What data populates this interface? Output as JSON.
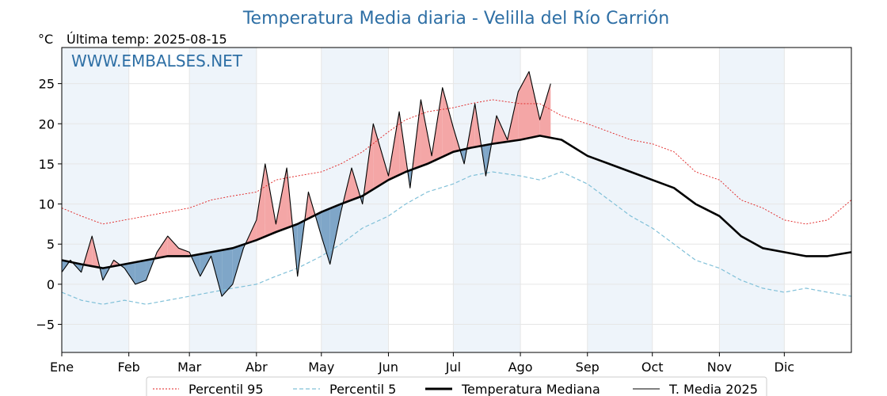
{
  "chart_data": {
    "type": "line",
    "title": "Temperatura Media diaria - Velilla del Río Carrión",
    "subtitle": "Última temp: 2025-08-15",
    "ylabel": "°C",
    "watermark": "WWW.EMBALSES.NET",
    "ylim": [
      -8.5,
      29.5
    ],
    "xlim": [
      1,
      366
    ],
    "yticks": [
      -5,
      0,
      5,
      10,
      15,
      20,
      25
    ],
    "ytick_labels": [
      "−5",
      "0",
      "5",
      "10",
      "15",
      "20",
      "25"
    ],
    "xticks": [
      {
        "label": "Ene",
        "day": 1
      },
      {
        "label": "Feb",
        "day": 32
      },
      {
        "label": "Mar",
        "day": 60
      },
      {
        "label": "Abr",
        "day": 91
      },
      {
        "label": "May",
        "day": 121
      },
      {
        "label": "Jun",
        "day": 152
      },
      {
        "label": "Jul",
        "day": 182
      },
      {
        "label": "Ago",
        "day": 213
      },
      {
        "label": "Sep",
        "day": 244
      },
      {
        "label": "Oct",
        "day": 274
      },
      {
        "label": "Nov",
        "day": 305
      },
      {
        "label": "Dic",
        "day": 335
      }
    ],
    "grid": true,
    "shaded_months": [
      "Ene",
      "Mar",
      "May",
      "Jul",
      "Sep",
      "Nov"
    ],
    "colors": {
      "p95": "#e02020",
      "p5": "#80c0d8",
      "median": "#000000",
      "current": "#000000",
      "above_fill": "#f4a6a6",
      "below_fill": "#7fa6c8",
      "title": "#2e6fa5",
      "band": "#eef4fa"
    },
    "legend_position": "bottom",
    "series": [
      {
        "name": "Percentil 95",
        "key": "p95",
        "x": [
          1,
          10,
          20,
          30,
          40,
          50,
          60,
          70,
          80,
          91,
          100,
          110,
          121,
          130,
          140,
          152,
          160,
          170,
          182,
          190,
          200,
          213,
          222,
          232,
          244,
          254,
          264,
          274,
          284,
          294,
          305,
          315,
          325,
          335,
          345,
          355,
          366
        ],
        "y": [
          9.5,
          8.5,
          7.5,
          8.0,
          8.5,
          9.0,
          9.5,
          10.5,
          11.0,
          11.5,
          13.0,
          13.5,
          14.0,
          15.0,
          16.5,
          19.0,
          20.5,
          21.5,
          22.0,
          22.5,
          23.0,
          22.5,
          22.5,
          21.0,
          20.0,
          19.0,
          18.0,
          17.5,
          16.5,
          14.0,
          13.0,
          10.5,
          9.5,
          8.0,
          7.5,
          8.0,
          10.5
        ]
      },
      {
        "name": "Percentil 5",
        "key": "p5",
        "x": [
          1,
          10,
          20,
          30,
          40,
          50,
          60,
          70,
          80,
          91,
          100,
          110,
          121,
          130,
          140,
          152,
          160,
          170,
          182,
          190,
          200,
          213,
          222,
          232,
          244,
          254,
          264,
          274,
          284,
          294,
          305,
          315,
          325,
          335,
          345,
          355,
          366
        ],
        "y": [
          -1.0,
          -2.0,
          -2.5,
          -2.0,
          -2.5,
          -2.0,
          -1.5,
          -1.0,
          -0.5,
          0.0,
          1.0,
          2.0,
          3.5,
          5.0,
          7.0,
          8.5,
          10.0,
          11.5,
          12.5,
          13.5,
          14.0,
          13.5,
          13.0,
          14.0,
          12.5,
          10.5,
          8.5,
          7.0,
          5.0,
          3.0,
          2.0,
          0.5,
          -0.5,
          -1.0,
          -0.5,
          -1.0,
          -1.5
        ]
      },
      {
        "name": "Temperatura Mediana",
        "key": "median",
        "x": [
          1,
          10,
          20,
          30,
          40,
          50,
          60,
          70,
          80,
          91,
          100,
          110,
          121,
          130,
          140,
          152,
          160,
          170,
          182,
          190,
          200,
          213,
          222,
          232,
          244,
          254,
          264,
          274,
          284,
          294,
          305,
          315,
          325,
          335,
          345,
          355,
          366
        ],
        "y": [
          3.0,
          2.5,
          2.0,
          2.5,
          3.0,
          3.5,
          3.5,
          4.0,
          4.5,
          5.5,
          6.5,
          7.5,
          9.0,
          10.0,
          11.0,
          13.0,
          14.0,
          15.0,
          16.5,
          17.0,
          17.5,
          18.0,
          18.5,
          18.0,
          16.0,
          15.0,
          14.0,
          13.0,
          12.0,
          10.0,
          8.5,
          6.0,
          4.5,
          4.0,
          3.5,
          3.5,
          4.0
        ]
      },
      {
        "name": "T. Media 2025",
        "key": "current",
        "x": [
          1,
          5,
          10,
          15,
          20,
          25,
          30,
          35,
          40,
          45,
          50,
          55,
          60,
          65,
          70,
          75,
          80,
          85,
          91,
          95,
          100,
          105,
          110,
          115,
          121,
          125,
          130,
          135,
          140,
          145,
          152,
          157,
          162,
          167,
          172,
          177,
          182,
          187,
          192,
          197,
          202,
          207,
          212,
          217,
          222,
          227
        ],
        "y": [
          1.5,
          3.0,
          1.5,
          6.0,
          0.5,
          3.0,
          2.0,
          0.0,
          0.5,
          4.0,
          6.0,
          4.5,
          4.0,
          1.0,
          3.5,
          -1.5,
          0.0,
          4.5,
          8.0,
          15.0,
          7.5,
          14.5,
          1.0,
          11.5,
          6.0,
          2.5,
          9.0,
          14.5,
          10.0,
          20.0,
          13.5,
          21.5,
          12.0,
          23.0,
          16.0,
          24.5,
          19.5,
          15.0,
          22.5,
          13.5,
          21.0,
          18.0,
          24.0,
          26.5,
          20.5,
          25.0
        ]
      }
    ]
  },
  "legend": [
    {
      "key": "p95",
      "label": "Percentil 95"
    },
    {
      "key": "p5",
      "label": "Percentil 5"
    },
    {
      "key": "median",
      "label": "Temperatura Mediana"
    },
    {
      "key": "current",
      "label": "T. Media 2025"
    }
  ]
}
